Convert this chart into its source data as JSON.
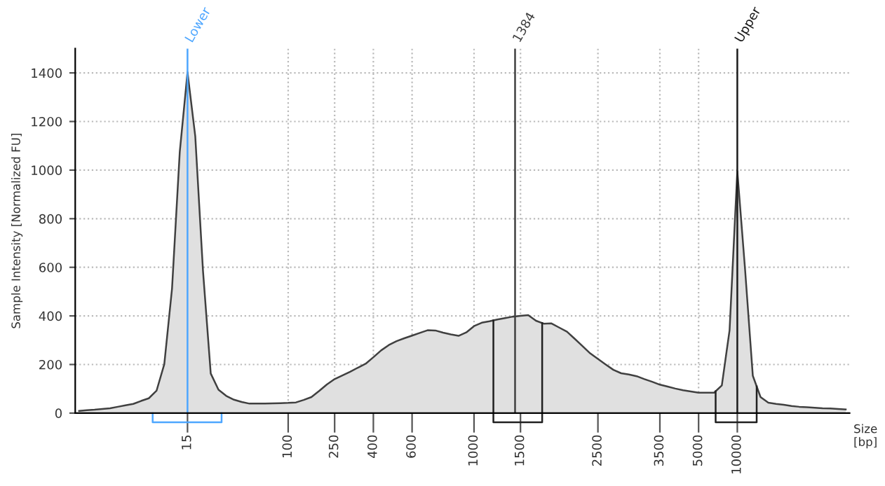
{
  "chart_data": {
    "type": "area",
    "ylabel": "Sample Intensity [Normalized FU]",
    "xlabel": "Size\n[bp]",
    "categories": [
      null,
      null,
      null,
      null,
      null,
      null,
      null,
      null,
      null,
      null,
      null,
      null,
      null,
      null,
      "15",
      null,
      null,
      null,
      null,
      null,
      null,
      null,
      null,
      null,
      null,
      null,
      null,
      "100",
      null,
      null,
      null,
      null,
      null,
      "250",
      null,
      null,
      null,
      null,
      "400",
      null,
      null,
      null,
      null,
      "600",
      null,
      null,
      null,
      null,
      null,
      null,
      null,
      "1000",
      null,
      null,
      null,
      null,
      null,
      "1500",
      null,
      null,
      null,
      null,
      null,
      null,
      null,
      null,
      null,
      "2500",
      null,
      null,
      null,
      null,
      null,
      null,
      null,
      "3500",
      null,
      null,
      null,
      null,
      "5000",
      null,
      null,
      null,
      null,
      "10000",
      null,
      null,
      null,
      null,
      null,
      null,
      null,
      null,
      null,
      null,
      null,
      null,
      null,
      null
    ],
    "series": [
      {
        "color": "#e0e0e0",
        "values": [
          9,
          12,
          14,
          17,
          20,
          26,
          32,
          38,
          50,
          61,
          92,
          201,
          512,
          1075,
          1403,
          1140,
          585,
          163,
          96,
          71,
          55,
          46,
          39,
          39,
          39,
          40,
          41,
          42,
          44,
          54,
          66,
          91,
          118,
          140,
          155,
          170,
          187,
          203,
          230,
          258,
          280,
          296,
          308,
          319,
          330,
          341,
          340,
          331,
          324,
          318,
          332,
          358,
          372,
          378,
          385,
          391,
          397,
          400,
          403,
          380,
          368,
          369,
          352,
          335,
          306,
          276,
          246,
          223,
          200,
          178,
          164,
          159,
          152,
          140,
          129,
          117,
          109,
          101,
          94,
          89,
          84,
          84,
          84,
          114,
          341,
          996,
          592,
          154,
          66,
          43,
          38,
          34,
          29,
          26,
          24,
          22,
          20,
          19,
          17,
          15
        ]
      }
    ],
    "ylim": [
      0,
      1500
    ],
    "yticks": [
      0,
      200,
      400,
      600,
      800,
      1000,
      1200,
      1400
    ],
    "grid": true,
    "ref_lines": [
      {
        "axis": "x",
        "value": "15",
        "label": "Lower",
        "color": "#4da6ff"
      },
      {
        "axis": "x",
        "value": "10000",
        "label": "Upper",
        "color": "#1a1a1a"
      }
    ],
    "annotations": [
      "1384"
    ]
  }
}
